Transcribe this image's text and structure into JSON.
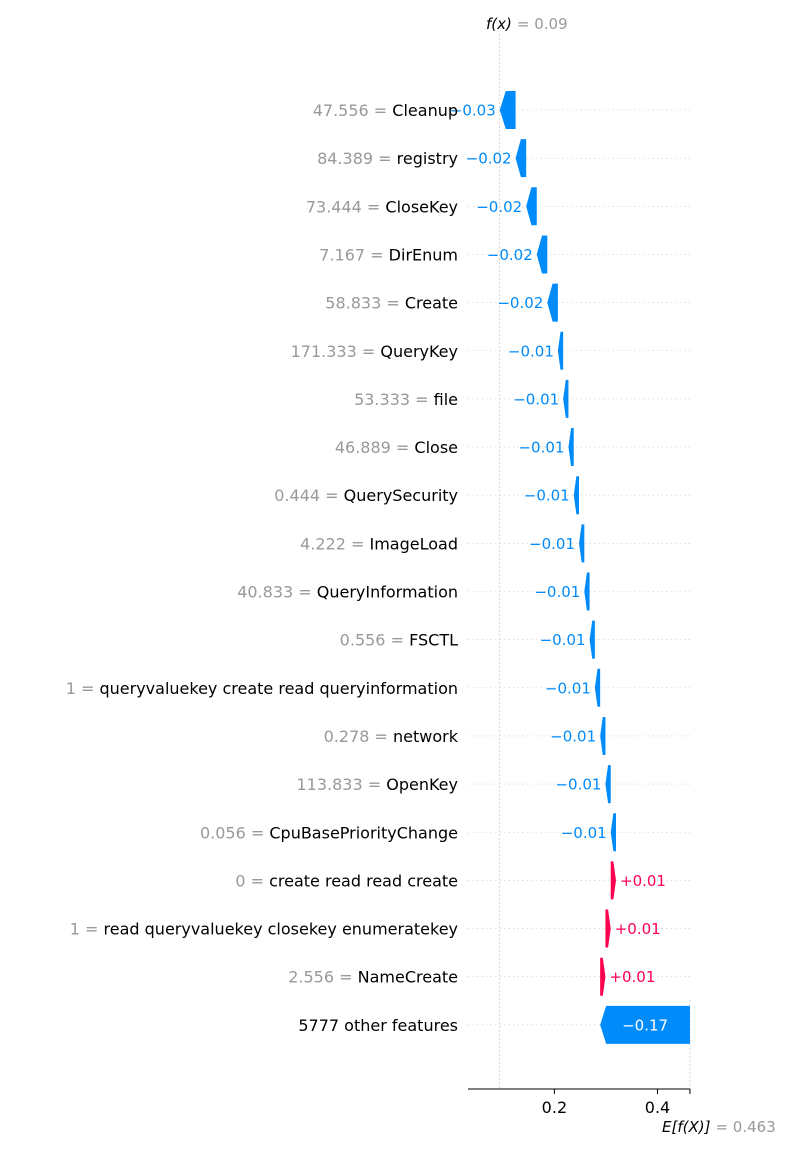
{
  "chart_data": {
    "type": "waterfall",
    "title": "",
    "xlabel": "",
    "ylabel": "",
    "xlim": [
      0.0,
      0.46
    ],
    "x_ticks": [
      0.2,
      0.4
    ],
    "x_tick_labels": [
      "0.2",
      "0.4"
    ],
    "fx": {
      "label": "f(x)",
      "value": "= 0.09",
      "x": 0.094
    },
    "efx": {
      "label": "E[f(X)]",
      "value": "= 0.463",
      "x": 0.463
    },
    "colors": {
      "negative": "#008bfb",
      "positive": "#ff0051",
      "value_text": "#999999"
    },
    "features": [
      {
        "value": "47.556",
        "eq": " = ",
        "name": "Cleanup",
        "contribution": -0.03,
        "label": "−0.03"
      },
      {
        "value": "84.389",
        "eq": " = ",
        "name": "registry",
        "contribution": -0.02,
        "label": "−0.02"
      },
      {
        "value": "73.444",
        "eq": " = ",
        "name": "CloseKey",
        "contribution": -0.02,
        "label": "−0.02"
      },
      {
        "value": "7.167",
        "eq": " = ",
        "name": "DirEnum",
        "contribution": -0.02,
        "label": "−0.02"
      },
      {
        "value": "58.833",
        "eq": " = ",
        "name": "Create",
        "contribution": -0.02,
        "label": "−0.02"
      },
      {
        "value": "171.333",
        "eq": " = ",
        "name": "QueryKey",
        "contribution": -0.01,
        "label": "−0.01"
      },
      {
        "value": "53.333",
        "eq": " = ",
        "name": "file",
        "contribution": -0.01,
        "label": "−0.01"
      },
      {
        "value": "46.889",
        "eq": " = ",
        "name": "Close",
        "contribution": -0.01,
        "label": "−0.01"
      },
      {
        "value": "0.444",
        "eq": " = ",
        "name": "QuerySecurity",
        "contribution": -0.01,
        "label": "−0.01"
      },
      {
        "value": "4.222",
        "eq": " = ",
        "name": "ImageLoad",
        "contribution": -0.01,
        "label": "−0.01"
      },
      {
        "value": "40.833",
        "eq": " = ",
        "name": "QueryInformation",
        "contribution": -0.01,
        "label": "−0.01"
      },
      {
        "value": "0.556",
        "eq": " = ",
        "name": "FSCTL",
        "contribution": -0.01,
        "label": "−0.01"
      },
      {
        "value": "1",
        "eq": " = ",
        "name": "queryvaluekey create read queryinformation",
        "contribution": -0.01,
        "label": "−0.01"
      },
      {
        "value": "0.278",
        "eq": " = ",
        "name": "network",
        "contribution": -0.01,
        "label": "−0.01"
      },
      {
        "value": "113.833",
        "eq": " = ",
        "name": "OpenKey",
        "contribution": -0.01,
        "label": "−0.01"
      },
      {
        "value": "0.056",
        "eq": " = ",
        "name": "CpuBasePriorityChange",
        "contribution": -0.01,
        "label": "−0.01"
      },
      {
        "value": "0",
        "eq": " = ",
        "name": "create read read create",
        "contribution": 0.01,
        "label": "+0.01"
      },
      {
        "value": "1",
        "eq": " = ",
        "name": "read queryvaluekey closekey enumeratekey",
        "contribution": 0.01,
        "label": "+0.01"
      },
      {
        "value": "2.556",
        "eq": " = ",
        "name": "NameCreate",
        "contribution": 0.01,
        "label": "+0.01"
      },
      {
        "value": "",
        "eq": "",
        "name": "5777 other features",
        "contribution": -0.17,
        "label": "−0.17"
      }
    ]
  }
}
